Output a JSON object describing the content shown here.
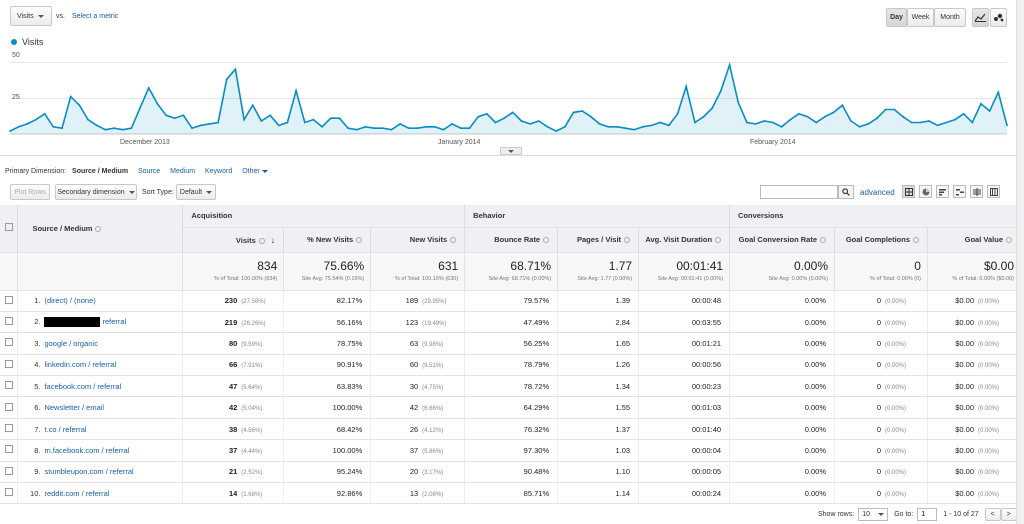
{
  "toolbar": {
    "metric_select": "Visits",
    "vs_label": "vs.",
    "select_metric_link": "Select a metric",
    "day_btn": "Day",
    "week_btn": "Week",
    "month_btn": "Month",
    "line_chart_icon": "line-chart-icon",
    "motion_chart_icon": "motion-chart-icon"
  },
  "chart_data": {
    "type": "area",
    "series": [
      {
        "name": "Visits",
        "color": "#058dc7",
        "values": [
          2,
          5,
          7,
          10,
          14,
          5,
          4,
          26,
          20,
          10,
          6,
          3,
          4,
          3,
          4,
          18,
          32,
          21,
          13,
          11,
          13,
          4,
          6,
          7,
          8,
          38,
          45,
          10,
          20,
          9,
          13,
          6,
          8,
          30,
          8,
          10,
          5,
          11,
          11,
          4,
          3,
          5,
          4,
          4,
          3,
          7,
          4,
          4,
          5,
          5,
          3,
          7,
          4,
          4,
          12,
          14,
          8,
          11,
          15,
          9,
          7,
          9,
          5,
          2,
          5,
          15,
          16,
          12,
          7,
          5,
          5,
          4,
          3,
          5,
          6,
          8,
          6,
          14,
          33,
          8,
          12,
          18,
          30,
          48,
          22,
          8,
          7,
          9,
          8,
          5,
          10,
          14,
          12,
          8,
          12,
          15,
          20,
          9,
          5,
          7,
          11,
          17,
          17,
          12,
          8,
          8,
          9,
          6,
          8,
          10,
          14,
          8,
          21,
          16,
          29,
          6
        ]
      }
    ],
    "x_tick_labels": [
      "December 2013",
      "January 2014",
      "February 2014"
    ],
    "y_tick_labels": [
      "50",
      "25"
    ],
    "ylim": [
      0,
      50
    ],
    "legend": "Visits",
    "grid": true
  },
  "dimension_bar": {
    "primary_label": "Primary Dimension:",
    "options": [
      "Source / Medium",
      "Source",
      "Medium",
      "Keyword",
      "Other"
    ]
  },
  "controls": {
    "plot_rows": "Plot Rows",
    "secondary_dimension": "Secondary dimension",
    "sort_type_label": "Sort Type:",
    "sort_type_value": "Default",
    "advanced_link": "advanced",
    "search_placeholder": ""
  },
  "table": {
    "group_headers": {
      "dimension": "Source / Medium",
      "acquisition": "Acquisition",
      "behavior": "Behavior",
      "conversions": "Conversions"
    },
    "columns": [
      "Visits",
      "% New Visits",
      "New Visits",
      "Bounce Rate",
      "Pages / Visit",
      "Avg. Visit Duration",
      "Goal Conversion Rate",
      "Goal Completions",
      "Goal Value"
    ],
    "totals": [
      {
        "big": "834",
        "sm": "% of Total: 100.00% (834)"
      },
      {
        "big": "75.66%",
        "sm": "Site Avg: 75.54% (0.16%)"
      },
      {
        "big": "631",
        "sm": "% of Total: 100.16% (630)"
      },
      {
        "big": "68.71%",
        "sm": "Site Avg: 68.71% (0.00%)"
      },
      {
        "big": "1.77",
        "sm": "Site Avg: 1.77 (0.00%)"
      },
      {
        "big": "00:01:41",
        "sm": "Site Avg: 00:01:41 (0.00%)"
      },
      {
        "big": "0.00%",
        "sm": "Site Avg: 0.00% (0.00%)"
      },
      {
        "big": "0",
        "sm": "% of Total: 0.00% (0)"
      },
      {
        "big": "$0.00",
        "sm": "% of Total: 0.00% ($0.00)"
      }
    ],
    "rows": [
      {
        "idx": "1.",
        "name": "(direct) / (none)",
        "visits": "230",
        "visits_pct": "(27.58%)",
        "new_pct": "82.17%",
        "new_visits": "189",
        "new_visits_pct": "(29.95%)",
        "bounce": "79.57%",
        "ppv": "1.39",
        "dur": "00:00:48",
        "gcr": "0.00%",
        "gc": "0",
        "gc_pct": "(0.00%)",
        "gv": "$0.00",
        "gv_pct": "(0.00%)"
      },
      {
        "idx": "2.",
        "name": "referral",
        "redacted": true,
        "visits": "219",
        "visits_pct": "(26.26%)",
        "new_pct": "56.16%",
        "new_visits": "123",
        "new_visits_pct": "(19.49%)",
        "bounce": "47.49%",
        "ppv": "2.84",
        "dur": "00:03:55",
        "gcr": "0.00%",
        "gc": "0",
        "gc_pct": "(0.00%)",
        "gv": "$0.00",
        "gv_pct": "(0.00%)"
      },
      {
        "idx": "3.",
        "name": "google / organic",
        "visits": "80",
        "visits_pct": "(9.59%)",
        "new_pct": "78.75%",
        "new_visits": "63",
        "new_visits_pct": "(9.98%)",
        "bounce": "56.25%",
        "ppv": "1.65",
        "dur": "00:01:21",
        "gcr": "0.00%",
        "gc": "0",
        "gc_pct": "(0.00%)",
        "gv": "$0.00",
        "gv_pct": "(0.00%)"
      },
      {
        "idx": "4.",
        "name": "linkedin.com / referral",
        "visits": "66",
        "visits_pct": "(7.91%)",
        "new_pct": "90.91%",
        "new_visits": "60",
        "new_visits_pct": "(9.51%)",
        "bounce": "78.79%",
        "ppv": "1.26",
        "dur": "00:00:56",
        "gcr": "0.00%",
        "gc": "0",
        "gc_pct": "(0.00%)",
        "gv": "$0.00",
        "gv_pct": "(0.00%)"
      },
      {
        "idx": "5.",
        "name": "facebook.com / referral",
        "visits": "47",
        "visits_pct": "(5.64%)",
        "new_pct": "63.83%",
        "new_visits": "30",
        "new_visits_pct": "(4.75%)",
        "bounce": "78.72%",
        "ppv": "1.34",
        "dur": "00:00:23",
        "gcr": "0.00%",
        "gc": "0",
        "gc_pct": "(0.00%)",
        "gv": "$0.00",
        "gv_pct": "(0.00%)"
      },
      {
        "idx": "6.",
        "name": "Newsletter / email",
        "visits": "42",
        "visits_pct": "(5.04%)",
        "new_pct": "100.00%",
        "new_visits": "42",
        "new_visits_pct": "(6.66%)",
        "bounce": "64.29%",
        "ppv": "1.55",
        "dur": "00:01:03",
        "gcr": "0.00%",
        "gc": "0",
        "gc_pct": "(0.00%)",
        "gv": "$0.00",
        "gv_pct": "(0.00%)"
      },
      {
        "idx": "7.",
        "name": "t.co / referral",
        "visits": "38",
        "visits_pct": "(4.56%)",
        "new_pct": "68.42%",
        "new_visits": "26",
        "new_visits_pct": "(4.12%)",
        "bounce": "76.32%",
        "ppv": "1.37",
        "dur": "00:01:40",
        "gcr": "0.00%",
        "gc": "0",
        "gc_pct": "(0.00%)",
        "gv": "$0.00",
        "gv_pct": "(0.00%)"
      },
      {
        "idx": "8.",
        "name": "m.facebook.com / referral",
        "visits": "37",
        "visits_pct": "(4.44%)",
        "new_pct": "100.00%",
        "new_visits": "37",
        "new_visits_pct": "(5.86%)",
        "bounce": "97.30%",
        "ppv": "1.03",
        "dur": "00:00:04",
        "gcr": "0.00%",
        "gc": "0",
        "gc_pct": "(0.00%)",
        "gv": "$0.00",
        "gv_pct": "(0.00%)"
      },
      {
        "idx": "9.",
        "name": "stumbleupon.com / referral",
        "visits": "21",
        "visits_pct": "(2.52%)",
        "new_pct": "95.24%",
        "new_visits": "20",
        "new_visits_pct": "(3.17%)",
        "bounce": "90.48%",
        "ppv": "1.10",
        "dur": "00:00:05",
        "gcr": "0.00%",
        "gc": "0",
        "gc_pct": "(0.00%)",
        "gv": "$0.00",
        "gv_pct": "(0.00%)"
      },
      {
        "idx": "10.",
        "name": "reddit.com / referral",
        "visits": "14",
        "visits_pct": "(1.68%)",
        "new_pct": "92.86%",
        "new_visits": "13",
        "new_visits_pct": "(2.06%)",
        "bounce": "85.71%",
        "ppv": "1.14",
        "dur": "00:00:24",
        "gcr": "0.00%",
        "gc": "0",
        "gc_pct": "(0.00%)",
        "gv": "$0.00",
        "gv_pct": "(0.00%)"
      }
    ]
  },
  "pagination": {
    "show_rows_label": "Show rows:",
    "show_rows_value": "10",
    "goto_label": "Go to:",
    "goto_value": "1",
    "range": "1 - 10 of 27",
    "prev": "<",
    "next": ">"
  }
}
